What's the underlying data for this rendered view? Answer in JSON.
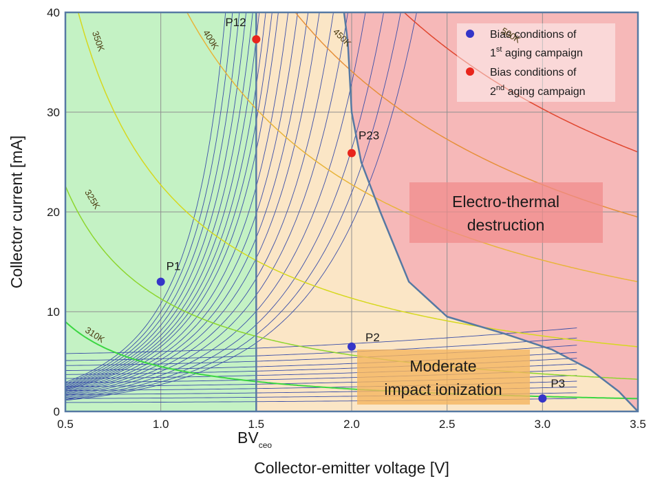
{
  "colors": {
    "stable_region": "#c4f2c4",
    "impact_region": "#fbe6c6",
    "destruction_region": "#f6b8b8",
    "boundary": "#5679a3",
    "bias_curve": "#3a4ea8",
    "grid": "#8f8f8f",
    "campaign1": "#3535c8",
    "campaign2": "#e8251c"
  },
  "chart_data": {
    "type": "line",
    "xlabel": "Collector-emitter voltage [V]",
    "ylabel": "Collector current [mA]",
    "xlim": [
      0.5,
      3.5
    ],
    "ylim": [
      0,
      40
    ],
    "x_ticks": [
      "0.5",
      "1.0",
      "1.5",
      "2.0",
      "2.5",
      "3.0",
      "3.5"
    ],
    "y_ticks": [
      "0",
      "10",
      "20",
      "30",
      "40"
    ],
    "grid": true,
    "bvceo": {
      "label_main": "BV",
      "label_sub": "ceo",
      "x": 1.5
    },
    "regions": {
      "destruction_label_lines": [
        "Electro-thermal",
        "destruction"
      ],
      "impact_label_lines": [
        "Moderate",
        "impact ionization"
      ]
    },
    "destruction_boundary": [
      [
        1.96,
        40
      ],
      [
        1.98,
        37
      ],
      [
        2.0,
        30
      ],
      [
        2.05,
        25
      ],
      [
        2.15,
        20
      ],
      [
        2.3,
        13
      ],
      [
        2.5,
        9.5
      ],
      [
        2.8,
        7.8
      ],
      [
        3.05,
        6.2
      ],
      [
        3.25,
        4.2
      ],
      [
        3.4,
        2
      ],
      [
        3.5,
        0
      ]
    ],
    "isotherms": [
      {
        "label": "310K",
        "power": 4.5,
        "color": "#3bd642",
        "label_pos": [
          0.6,
          8.0
        ]
      },
      {
        "label": "325K",
        "power": 11.3,
        "color": "#8dd62e",
        "label_pos": [
          0.6,
          22.0
        ]
      },
      {
        "label": "350K",
        "power": 22.7,
        "color": "#d6d81e",
        "label_pos": [
          0.64,
          38.0
        ]
      },
      {
        "label": "400K",
        "power": 45.5,
        "color": "#e8b43a",
        "label_pos": [
          1.22,
          38.0
        ]
      },
      {
        "label": "450K",
        "power": 68.2,
        "color": "#e6903a",
        "label_pos": [
          1.9,
          38.0
        ]
      },
      {
        "label": "500K",
        "power": 91.0,
        "color": "#e0462e",
        "label_pos": [
          2.78,
          38.0
        ]
      }
    ],
    "bias_curves": {
      "knee_voltages": [
        1.6,
        1.65,
        1.7,
        1.75,
        1.8,
        1.85,
        1.9,
        1.95,
        2.0,
        2.08,
        2.16,
        2.25,
        2.35,
        2.48,
        2.62,
        2.8,
        3.0,
        3.2,
        3.4
      ],
      "base_currents": [
        0.9,
        1.3,
        1.7,
        2.1,
        2.5,
        2.9,
        3.3,
        3.7,
        4.1,
        4.6,
        5.1,
        5.8
      ]
    },
    "series": [
      {
        "name": "Bias conditions of 1st aging campaign",
        "points": [
          {
            "label": "P1",
            "x": 1.0,
            "y": 13.0
          },
          {
            "label": "P2",
            "x": 2.0,
            "y": 6.5
          },
          {
            "label": "P3",
            "x": 3.0,
            "y": 1.3
          }
        ]
      },
      {
        "name": "Bias conditions of 2nd aging campaign",
        "points": [
          {
            "label": "P12",
            "x": 1.5,
            "y": 37.3
          },
          {
            "label": "P23",
            "x": 2.0,
            "y": 25.9
          }
        ]
      }
    ],
    "legend": {
      "placement": "top-right",
      "entries": [
        {
          "line1": "Bias conditions of",
          "line2_prefix": "1",
          "line2_sup": "st",
          "line2_suffix": " aging campaign"
        },
        {
          "line1": "Bias conditions of",
          "line2_prefix": "2",
          "line2_sup": "nd",
          "line2_suffix": " aging campaign"
        }
      ]
    }
  }
}
